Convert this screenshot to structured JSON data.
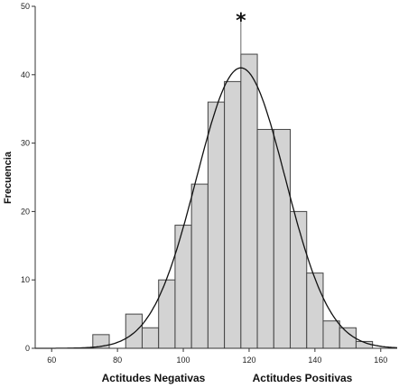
{
  "chart_data": {
    "type": "bar",
    "subtype": "histogram",
    "ylabel": "Frecuencia",
    "xlim": [
      55,
      165
    ],
    "ylim": [
      0,
      50
    ],
    "xticks": [
      60,
      80,
      100,
      120,
      140,
      160
    ],
    "yticks": [
      0,
      10,
      20,
      30,
      40,
      50
    ],
    "bin_width": 5,
    "bin_starts": [
      72.5,
      77.5,
      82.5,
      87.5,
      92.5,
      97.5,
      102.5,
      107.5,
      112.5,
      117.5,
      122.5,
      127.5,
      132.5,
      137.5,
      142.5,
      147.5,
      152.5
    ],
    "values": [
      2,
      0,
      5,
      3,
      10,
      18,
      24,
      36,
      39,
      43,
      32,
      32,
      20,
      11,
      4,
      3,
      1
    ],
    "normal_curve": {
      "mean": 117.5,
      "sd": 13.5,
      "peak": 41
    },
    "mean_marker": {
      "x": 117.5,
      "symbol": "*"
    },
    "annotations": {
      "left": "Actitudes Negativas",
      "right": "Actitudes Positivas"
    },
    "grid": false,
    "colors": {
      "bar_fill": "#d3d3d3",
      "bar_stroke": "#444444",
      "curve": "#111111",
      "axis": "#333333"
    }
  }
}
